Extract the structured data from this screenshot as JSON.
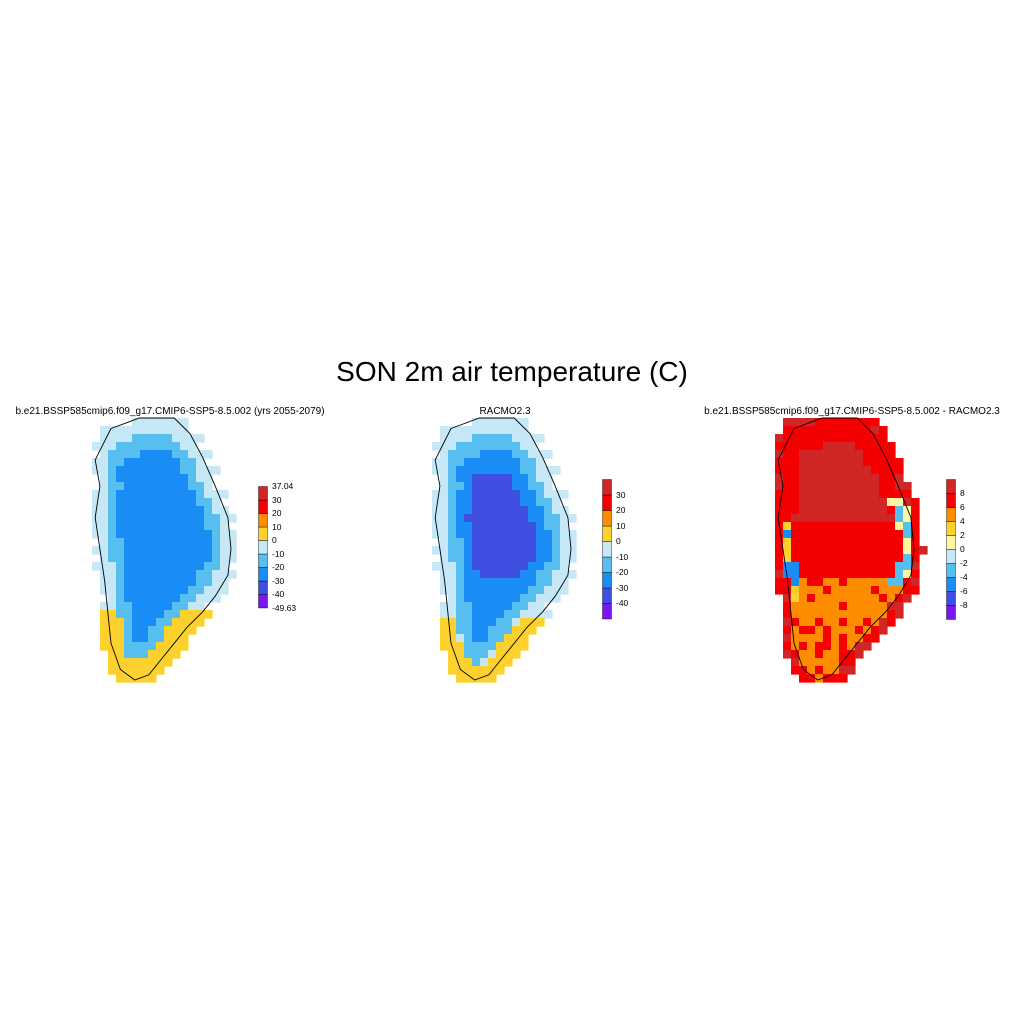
{
  "title": "SON 2m air temperature (C)",
  "panels": [
    {
      "title": "b.e21.BSSP585cmip6.f09_g17.CMIP6-SSP5-8.5.002 (yrs 2055-2079)",
      "colorbar": {
        "colors": [
          "#7b16f2",
          "#3e4fe2",
          "#1a8cf5",
          "#56bff0",
          "#c6e7f6",
          "#fdd12d",
          "#fd8c00",
          "#f40000",
          "#d12626"
        ],
        "labels": [
          "37.04",
          "30",
          "20",
          "10",
          "0",
          "-10",
          "-20",
          "-30",
          "-40",
          "-49.63"
        ]
      }
    },
    {
      "title": "RACMO2.3",
      "colorbar": {
        "colors": [
          "#7b16f2",
          "#3e4fe2",
          "#1a8cf5",
          "#56bff0",
          "#c6e7f6",
          "#fdd12d",
          "#fd8c00",
          "#f40000",
          "#d12626"
        ],
        "labels": [
          "30",
          "20",
          "10",
          "0",
          "-10",
          "-20",
          "-30",
          "-40"
        ]
      }
    },
    {
      "title": "b.e21.BSSP585cmip6.f09_g17.CMIP6-SSP5-8.5.002 - RACMO2.3",
      "colorbar": {
        "colors": [
          "#7b16f2",
          "#3e4fe2",
          "#1a8cf5",
          "#56bff0",
          "#c6e7f6",
          "#fff6a0",
          "#fdd12d",
          "#fd8c00",
          "#f40000",
          "#d12626"
        ],
        "labels": [
          "8",
          "6",
          "4",
          "2",
          "0",
          "-2",
          "-4",
          "-6",
          "-8"
        ]
      }
    }
  ]
}
